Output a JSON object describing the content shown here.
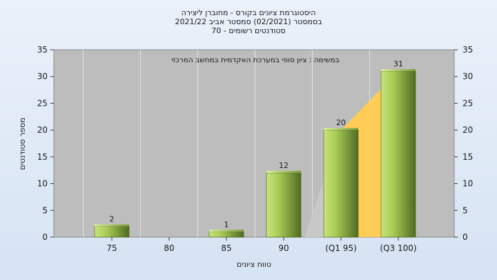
{
  "chart_data": {
    "type": "bar",
    "title_lines": [
      "היסטוגרמת ציונים בקורס - מחוברן ליצירה",
      "בסמסטר  (02/2021)  סמסטר אביב 2021/22",
      "סטודנטים רשומים - 70"
    ],
    "subtitle": "במשימה : ציון סופי במערכת האקדמית במחשב המרכזי",
    "xlabel": "טווח ציונים",
    "ylabel": "מספר סטודנטים",
    "categories": [
      "75",
      "80",
      "85",
      "90",
      "(Q1 95)",
      "(Q3 100)"
    ],
    "values": [
      2,
      0,
      1,
      12,
      20,
      31
    ],
    "data_labels": [
      "2",
      "",
      "1",
      "12",
      "20",
      "31"
    ],
    "ylim": [
      0,
      35
    ],
    "yticks": [
      "0",
      "5",
      "10",
      "15",
      "20",
      "25",
      "30",
      "35"
    ],
    "quartile_region": {
      "from_category": 3,
      "to_category": 5,
      "lower_values": [
        0,
        20
      ],
      "upper_values": [
        20,
        31
      ]
    },
    "grid": true,
    "colors": {
      "plot_bg": "#bdbdbd",
      "bar_light": "#c9e47a",
      "bar_dark": "#4f6b22",
      "lower_quartile_fill": "#c8c8c8",
      "upper_quartile_fill": "#ffcc55"
    }
  }
}
